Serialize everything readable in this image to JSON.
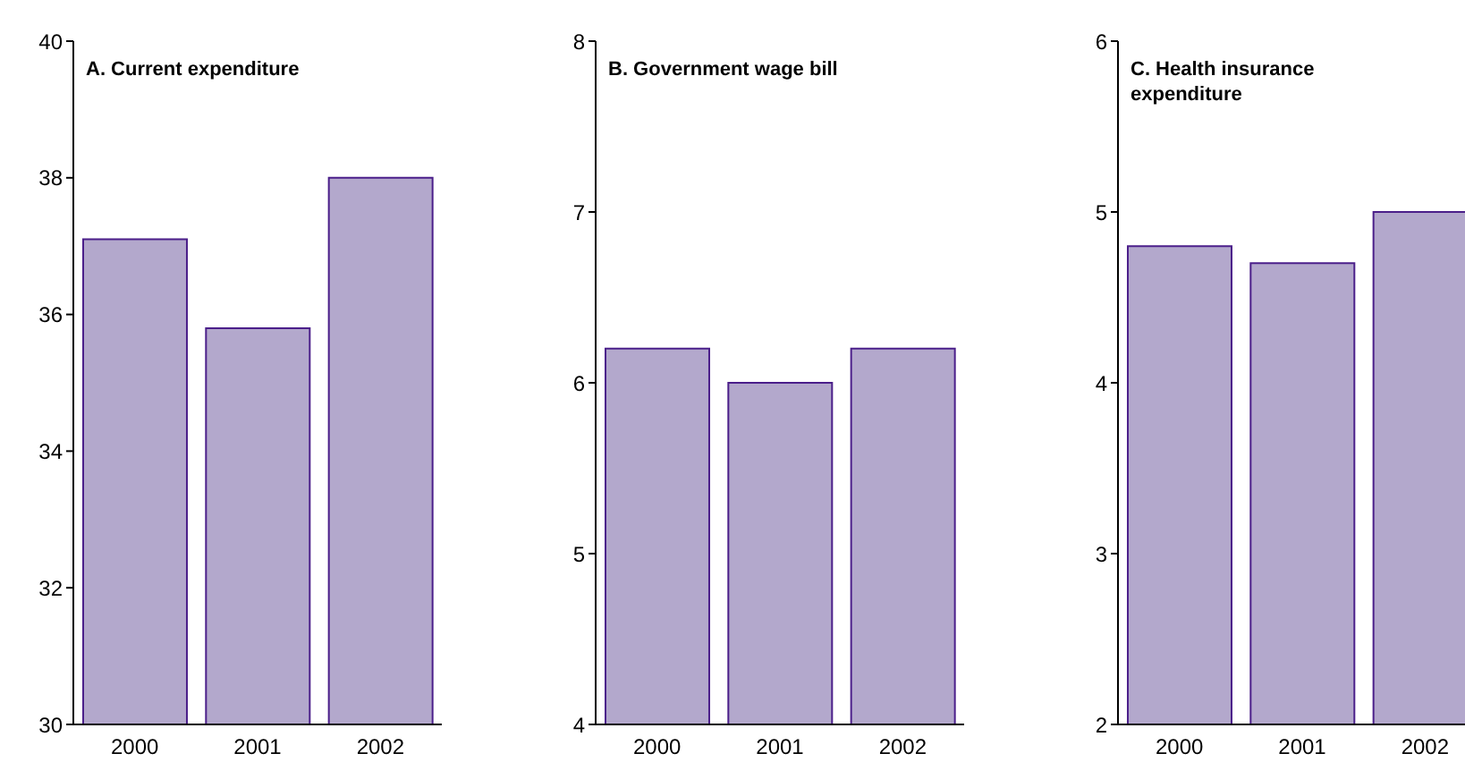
{
  "chart_data": [
    {
      "type": "bar",
      "title": "A. Current expenditure",
      "categories": [
        "2000",
        "2001",
        "2002"
      ],
      "values": [
        37.1,
        35.8,
        38.0
      ],
      "color": "#b3a8cc",
      "ylim": [
        30,
        40
      ],
      "yticks": [
        30,
        32,
        34,
        36,
        38,
        40
      ]
    },
    {
      "type": "bar",
      "title": "B. Government wage bill",
      "categories": [
        "2000",
        "2001",
        "2002"
      ],
      "values": [
        6.2,
        6.0,
        6.2
      ],
      "color": "#b3a8cc",
      "ylim": [
        4,
        8
      ],
      "yticks": [
        4,
        5,
        6,
        7,
        8
      ]
    },
    {
      "type": "bar",
      "title": "C. Health insurance expenditure",
      "categories": [
        "2000",
        "2001",
        "2002"
      ],
      "values": [
        4.8,
        4.7,
        5.0
      ],
      "color": "#b3a8cc",
      "ylim": [
        2,
        6
      ],
      "yticks": [
        2,
        3,
        4,
        5,
        6
      ]
    }
  ]
}
